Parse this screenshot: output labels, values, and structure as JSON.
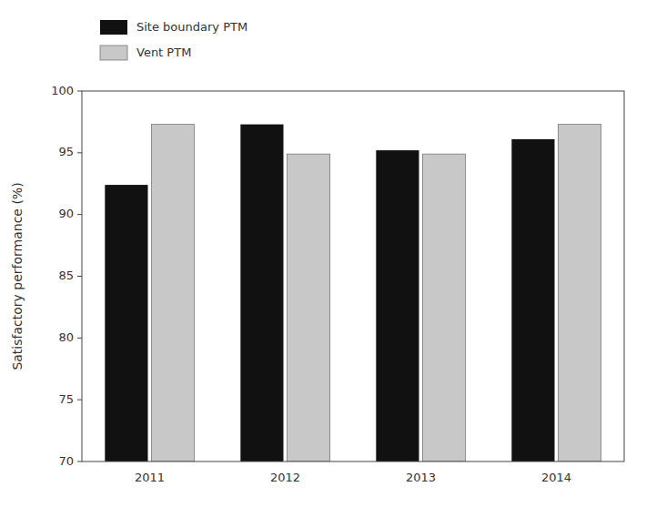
{
  "chart_data": {
    "type": "bar",
    "ylabel": "Satisfactory performance (%)",
    "categories": [
      "2011",
      "2012",
      "2013",
      "2014"
    ],
    "series": [
      {
        "name": "Site boundary PTM",
        "color": "#111111",
        "values": [
          92.4,
          97.3,
          95.2,
          96.1
        ]
      },
      {
        "name": "Vent PTM",
        "color": "#c8c8c8",
        "values": [
          97.3,
          94.9,
          94.9,
          97.3
        ]
      }
    ],
    "ylim": [
      70,
      100
    ],
    "yticks": [
      70,
      75,
      80,
      85,
      90,
      95,
      100
    ],
    "grid": false,
    "legend": "top"
  }
}
